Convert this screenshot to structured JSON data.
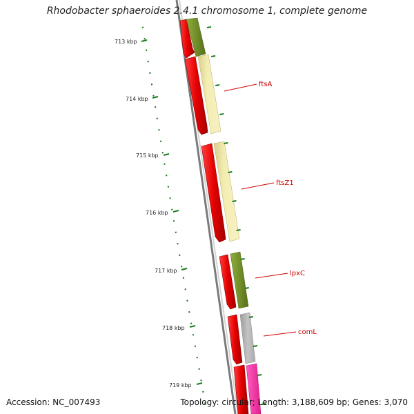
{
  "map": {
    "title": "Rhodobacter sphaeroides 2.4.1 chromosome 1, complete genome",
    "accession": "Accession: NC_007493",
    "summary": "Topology: circular; Length: 3,188,609 bp; Genes: 3,070"
  },
  "ruler": {
    "unit": "kbp",
    "major_ticks": [
      {
        "value": 713,
        "label": "713 kbp"
      },
      {
        "value": 714,
        "label": "714 kbp"
      },
      {
        "value": 715,
        "label": "715 kbp"
      },
      {
        "value": 716,
        "label": "716 kbp"
      },
      {
        "value": 717,
        "label": "717 kbp"
      },
      {
        "value": 718,
        "label": "718 kbp"
      },
      {
        "value": 719,
        "label": "719 kbp"
      }
    ],
    "tick_color": "#1a7a1a"
  },
  "genes": [
    {
      "name": "ftsA",
      "color": "#f2eaa6"
    },
    {
      "name": "ftsZ1",
      "color": "#f2eaa6"
    },
    {
      "name": "lpxC",
      "color": "#6e8b25"
    },
    {
      "name": "comL",
      "color": "#b5b5b5"
    }
  ],
  "colors": {
    "cds_red": "#e60000",
    "backbone": "#888888",
    "label_line": "#cc0000",
    "magenta_gene": "#ff2ea8",
    "olive_gene": "#6e8b25",
    "pale_gene": "#f2eaa6",
    "gray_gene": "#b5b5b5"
  }
}
